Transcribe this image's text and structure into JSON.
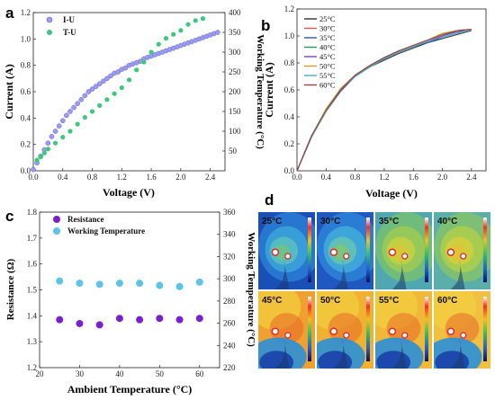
{
  "colors": {
    "iu": "#9b9bf0",
    "tu": "#3dc97b",
    "resistance": "#7b1fd1",
    "working_temp": "#5bc4e8",
    "temp_lines": [
      "#333333",
      "#e05050",
      "#3050d0",
      "#20a050",
      "#8040c0",
      "#d0a020",
      "#40b0c0",
      "#a04040"
    ]
  },
  "panels": {
    "a": "a",
    "b": "b",
    "c": "c",
    "d": "d"
  },
  "chart_data": [
    {
      "panel": "a",
      "type": "scatter",
      "xlabel": "Voltage (V)",
      "ylabel": "Current (A)",
      "y2label": "Working Temperature (°C)",
      "xlim": [
        0,
        2.6
      ],
      "ylim": [
        0,
        1.2
      ],
      "y2lim": [
        0,
        400
      ],
      "xticks": [
        "0.0",
        "0.4",
        "0.8",
        "1.2",
        "1.6",
        "2.0",
        "2.4"
      ],
      "yticks": [
        "0.0",
        "0.2",
        "0.4",
        "0.6",
        "0.8",
        "1.0",
        "1.2"
      ],
      "y2ticks": [
        "50",
        "100",
        "150",
        "200",
        "250",
        "300",
        "350",
        "400"
      ],
      "legend_position": "top-left",
      "series": [
        {
          "name": "I-U",
          "axis": "left",
          "x": [
            0.0,
            0.05,
            0.1,
            0.15,
            0.2,
            0.25,
            0.3,
            0.35,
            0.4,
            0.45,
            0.5,
            0.55,
            0.6,
            0.65,
            0.7,
            0.75,
            0.8,
            0.85,
            0.9,
            0.95,
            1.0,
            1.05,
            1.1,
            1.15,
            1.2,
            1.25,
            1.3,
            1.35,
            1.4,
            1.45,
            1.5,
            1.55,
            1.6,
            1.65,
            1.7,
            1.75,
            1.8,
            1.85,
            1.9,
            1.95,
            2.0,
            2.05,
            2.1,
            2.15,
            2.2,
            2.25,
            2.3,
            2.35,
            2.4,
            2.45,
            2.5
          ],
          "y": [
            0.01,
            0.06,
            0.11,
            0.16,
            0.21,
            0.26,
            0.3,
            0.34,
            0.38,
            0.42,
            0.45,
            0.48,
            0.51,
            0.54,
            0.57,
            0.6,
            0.62,
            0.64,
            0.66,
            0.68,
            0.7,
            0.72,
            0.74,
            0.75,
            0.77,
            0.78,
            0.8,
            0.81,
            0.82,
            0.83,
            0.85,
            0.86,
            0.87,
            0.88,
            0.89,
            0.9,
            0.91,
            0.92,
            0.93,
            0.94,
            0.95,
            0.96,
            0.97,
            0.98,
            0.99,
            1.0,
            1.01,
            1.02,
            1.03,
            1.04,
            1.05
          ]
        },
        {
          "name": "T-U",
          "axis": "right",
          "x": [
            0.05,
            0.1,
            0.15,
            0.2,
            0.3,
            0.4,
            0.5,
            0.6,
            0.7,
            0.8,
            0.9,
            1.0,
            1.1,
            1.2,
            1.3,
            1.4,
            1.5,
            1.6,
            1.7,
            1.8,
            1.9,
            2.0,
            2.1,
            2.2,
            2.3
          ],
          "y": [
            27,
            35,
            45,
            55,
            70,
            85,
            100,
            118,
            135,
            150,
            165,
            180,
            195,
            210,
            230,
            255,
            275,
            300,
            320,
            335,
            345,
            355,
            370,
            380,
            385
          ]
        }
      ]
    },
    {
      "panel": "b",
      "type": "line",
      "xlabel": "Voltage (V)",
      "ylabel": "Current (A)",
      "xlim": [
        0,
        2.6
      ],
      "ylim": [
        0,
        1.2
      ],
      "xticks": [
        "0.0",
        "0.4",
        "0.8",
        "1.2",
        "1.6",
        "2.0",
        "2.4"
      ],
      "yticks": [
        "0.0",
        "0.2",
        "0.4",
        "0.6",
        "0.8",
        "1.0",
        "1.2"
      ],
      "legend_position": "top-left",
      "x": [
        0.0,
        0.2,
        0.4,
        0.6,
        0.8,
        1.0,
        1.2,
        1.4,
        1.6,
        1.8,
        2.0,
        2.2,
        2.4
      ],
      "series": [
        {
          "name": "25°C",
          "values": [
            0.0,
            0.26,
            0.45,
            0.6,
            0.7,
            0.77,
            0.82,
            0.87,
            0.91,
            0.95,
            0.98,
            1.01,
            1.04
          ]
        },
        {
          "name": "30°C",
          "values": [
            0.0,
            0.26,
            0.45,
            0.6,
            0.71,
            0.78,
            0.83,
            0.88,
            0.92,
            0.96,
            1.0,
            1.04,
            1.05
          ]
        },
        {
          "name": "35°C",
          "values": [
            0.0,
            0.25,
            0.44,
            0.59,
            0.7,
            0.77,
            0.83,
            0.88,
            0.92,
            0.95,
            0.99,
            1.02,
            1.05
          ]
        },
        {
          "name": "40°C",
          "values": [
            0.0,
            0.26,
            0.45,
            0.61,
            0.71,
            0.78,
            0.84,
            0.89,
            0.93,
            0.97,
            1.01,
            1.03,
            1.05
          ]
        },
        {
          "name": "45°C",
          "values": [
            0.0,
            0.25,
            0.45,
            0.6,
            0.7,
            0.78,
            0.83,
            0.88,
            0.92,
            0.96,
            1.0,
            1.03,
            1.05
          ]
        },
        {
          "name": "50°C",
          "values": [
            0.0,
            0.26,
            0.46,
            0.61,
            0.71,
            0.78,
            0.84,
            0.89,
            0.93,
            0.97,
            1.02,
            1.04,
            1.05
          ]
        },
        {
          "name": "55°C",
          "values": [
            0.0,
            0.25,
            0.44,
            0.6,
            0.7,
            0.77,
            0.83,
            0.88,
            0.92,
            0.96,
            0.99,
            1.02,
            1.05
          ]
        },
        {
          "name": "60°C",
          "values": [
            0.0,
            0.26,
            0.45,
            0.6,
            0.71,
            0.78,
            0.84,
            0.89,
            0.93,
            0.97,
            1.01,
            1.04,
            1.05
          ]
        }
      ]
    },
    {
      "panel": "c",
      "type": "scatter",
      "xlabel": "Ambient Temperature (°C)",
      "ylabel": "Resistance (Ω)",
      "y2label": "Working Temperature (°C)",
      "xlim": [
        20,
        65
      ],
      "ylim": [
        1.2,
        1.8
      ],
      "y2lim": [
        220,
        360
      ],
      "xticks": [
        "20",
        "30",
        "40",
        "50",
        "60"
      ],
      "yticks": [
        "1.2",
        "1.3",
        "1.4",
        "1.5",
        "1.6",
        "1.7",
        "1.8"
      ],
      "y2ticks": [
        "220",
        "240",
        "260",
        "280",
        "300",
        "320",
        "340",
        "360"
      ],
      "legend_position": "top-left",
      "series": [
        {
          "name": "Resistance",
          "axis": "left",
          "x": [
            25,
            30,
            35,
            40,
            45,
            50,
            55,
            60
          ],
          "y": [
            1.385,
            1.37,
            1.365,
            1.39,
            1.385,
            1.39,
            1.385,
            1.39
          ]
        },
        {
          "name": "Working Temperature",
          "axis": "right",
          "x": [
            25,
            30,
            35,
            40,
            45,
            50,
            55,
            60
          ],
          "y": [
            298,
            296,
            295,
            296,
            296,
            294,
            293,
            297
          ]
        }
      ]
    }
  ],
  "thermal": {
    "labels": [
      "25°C",
      "30°C",
      "35°C",
      "40°C",
      "45°C",
      "50°C",
      "55°C",
      "60°C"
    ]
  }
}
